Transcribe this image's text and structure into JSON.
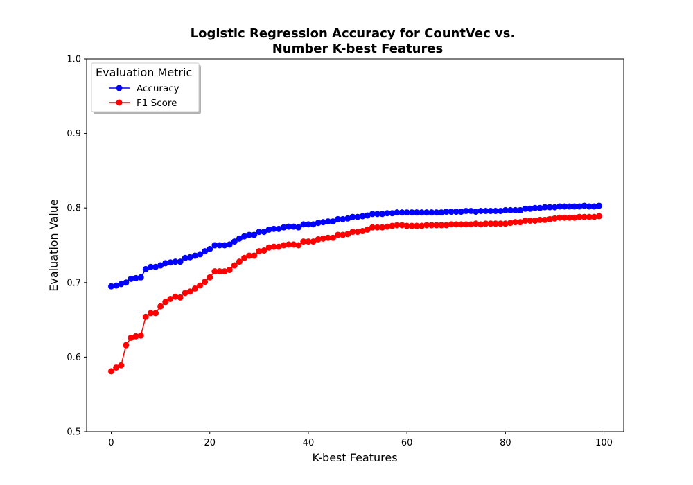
{
  "chart_data": {
    "type": "line",
    "title_lines": [
      "Logistic Regression Accuracy for CountVec vs.",
      "Number K-best Features"
    ],
    "xlabel": "K-best Features",
    "ylabel": "Evaluation Value",
    "xlim": [
      -5,
      104
    ],
    "ylim": [
      0.5,
      1.0
    ],
    "xticks": [
      0,
      20,
      40,
      60,
      80,
      100
    ],
    "yticks": [
      0.5,
      0.6,
      0.7,
      0.8,
      0.9,
      1.0
    ],
    "xtick_labels": [
      "0",
      "20",
      "40",
      "60",
      "80",
      "100"
    ],
    "ytick_labels": [
      "0.5",
      "0.6",
      "0.7",
      "0.8",
      "0.9",
      "1.0"
    ],
    "grid": false,
    "legend": {
      "title": "Evaluation Metric",
      "placement": "top-left"
    },
    "x": [
      0,
      1,
      2,
      3,
      4,
      5,
      6,
      7,
      8,
      9,
      10,
      11,
      12,
      13,
      14,
      15,
      16,
      17,
      18,
      19,
      20,
      21,
      22,
      23,
      24,
      25,
      26,
      27,
      28,
      29,
      30,
      31,
      32,
      33,
      34,
      35,
      36,
      37,
      38,
      39,
      40,
      41,
      42,
      43,
      44,
      45,
      46,
      47,
      48,
      49,
      50,
      51,
      52,
      53,
      54,
      55,
      56,
      57,
      58,
      59,
      60,
      61,
      62,
      63,
      64,
      65,
      66,
      67,
      68,
      69,
      70,
      71,
      72,
      73,
      74,
      75,
      76,
      77,
      78,
      79,
      80,
      81,
      82,
      83,
      84,
      85,
      86,
      87,
      88,
      89,
      90,
      91,
      92,
      93,
      94,
      95,
      96,
      97,
      98,
      99
    ],
    "series": [
      {
        "name": "Accuracy",
        "color": "#0000ff",
        "values": [
          0.695,
          0.696,
          0.698,
          0.7,
          0.705,
          0.706,
          0.707,
          0.718,
          0.721,
          0.721,
          0.723,
          0.726,
          0.727,
          0.728,
          0.728,
          0.733,
          0.734,
          0.736,
          0.738,
          0.742,
          0.745,
          0.75,
          0.75,
          0.75,
          0.751,
          0.755,
          0.759,
          0.762,
          0.764,
          0.764,
          0.768,
          0.768,
          0.771,
          0.772,
          0.772,
          0.774,
          0.775,
          0.775,
          0.774,
          0.778,
          0.778,
          0.778,
          0.78,
          0.781,
          0.782,
          0.782,
          0.785,
          0.785,
          0.786,
          0.788,
          0.788,
          0.789,
          0.79,
          0.792,
          0.792,
          0.792,
          0.793,
          0.793,
          0.794,
          0.794,
          0.794,
          0.794,
          0.794,
          0.794,
          0.794,
          0.794,
          0.794,
          0.794,
          0.795,
          0.795,
          0.795,
          0.795,
          0.796,
          0.796,
          0.795,
          0.796,
          0.796,
          0.796,
          0.796,
          0.796,
          0.797,
          0.797,
          0.797,
          0.797,
          0.799,
          0.799,
          0.8,
          0.8,
          0.801,
          0.801,
          0.801,
          0.802,
          0.802,
          0.802,
          0.802,
          0.802,
          0.803,
          0.802,
          0.802,
          0.803
        ]
      },
      {
        "name": "F1 Score",
        "color": "#ff0000",
        "values": [
          0.581,
          0.586,
          0.589,
          0.616,
          0.626,
          0.628,
          0.629,
          0.654,
          0.659,
          0.659,
          0.668,
          0.674,
          0.678,
          0.681,
          0.68,
          0.686,
          0.688,
          0.692,
          0.696,
          0.701,
          0.707,
          0.715,
          0.715,
          0.715,
          0.717,
          0.723,
          0.728,
          0.733,
          0.736,
          0.736,
          0.742,
          0.743,
          0.747,
          0.748,
          0.748,
          0.75,
          0.751,
          0.751,
          0.75,
          0.755,
          0.755,
          0.755,
          0.758,
          0.759,
          0.76,
          0.76,
          0.764,
          0.764,
          0.765,
          0.768,
          0.768,
          0.769,
          0.771,
          0.774,
          0.774,
          0.774,
          0.775,
          0.776,
          0.777,
          0.777,
          0.776,
          0.776,
          0.776,
          0.776,
          0.777,
          0.777,
          0.777,
          0.777,
          0.777,
          0.778,
          0.778,
          0.778,
          0.778,
          0.778,
          0.779,
          0.778,
          0.779,
          0.779,
          0.779,
          0.779,
          0.779,
          0.78,
          0.781,
          0.781,
          0.783,
          0.783,
          0.783,
          0.784,
          0.784,
          0.785,
          0.786,
          0.787,
          0.787,
          0.787,
          0.787,
          0.788,
          0.788,
          0.788,
          0.788,
          0.789
        ]
      }
    ]
  }
}
